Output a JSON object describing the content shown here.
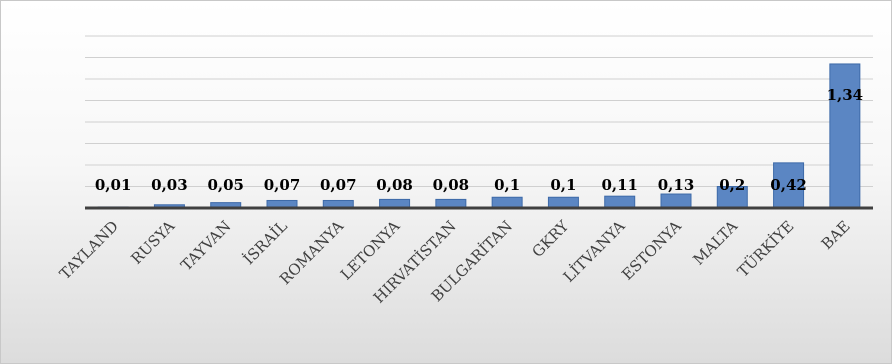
{
  "chart_data": {
    "type": "bar",
    "title": "",
    "xlabel": "",
    "ylabel": "",
    "categories": [
      "TAYLAND",
      "RUSYA",
      "TAYVAN",
      "İSRAİL",
      "ROMANYA",
      "LETONYA",
      "HIRVATİSTAN",
      "BULGARİTAN",
      "GKRY",
      "LİTVANYA",
      "ESTONYA",
      "MALTA",
      "TÜRKİYE",
      "BAE"
    ],
    "values": [
      0.01,
      0.03,
      0.05,
      0.07,
      0.07,
      0.08,
      0.08,
      0.1,
      0.1,
      0.11,
      0.13,
      0.2,
      0.42,
      1.34
    ],
    "data_labels": [
      "0,01",
      "0,03",
      "0,05",
      "0,07",
      "0,07",
      "0,08",
      "0,08",
      "0,1",
      "0,1",
      "0,11",
      "0,13",
      "0,2",
      "0,42",
      "1,34"
    ],
    "ylim": [
      0,
      1.6
    ],
    "grid": true,
    "legend": "none",
    "bar_color": "#5b86c3"
  }
}
